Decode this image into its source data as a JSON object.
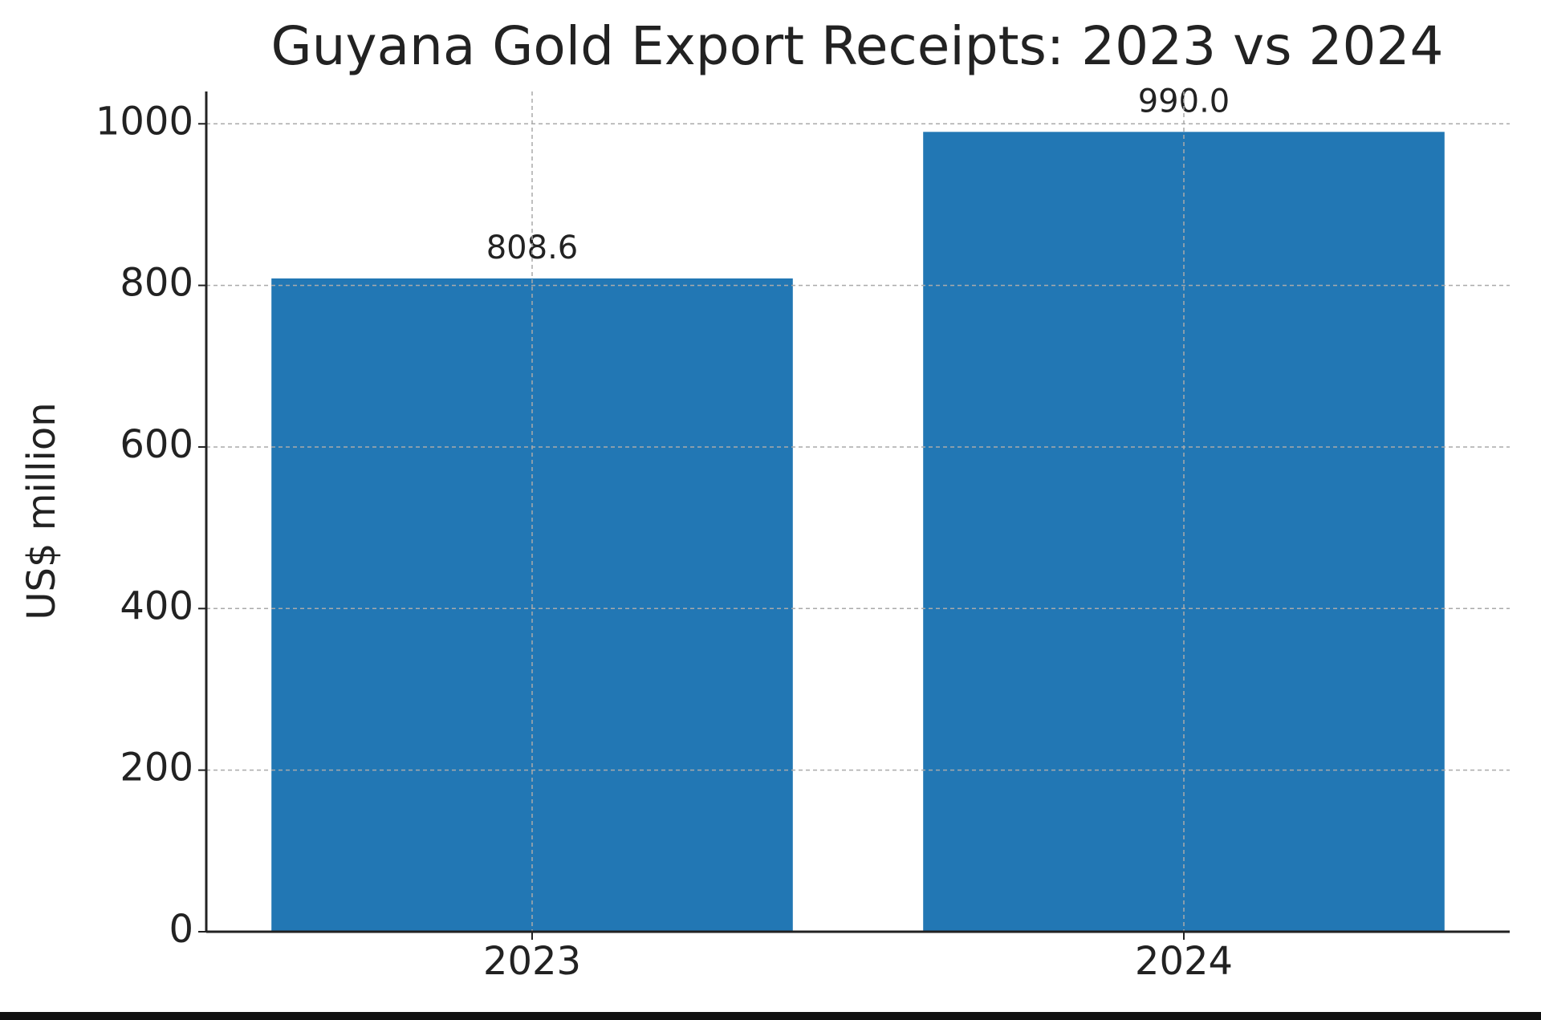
{
  "chart_data": {
    "type": "bar",
    "title": "Guyana Gold Export Receipts: 2023 vs 2024",
    "y_label": "US$ million",
    "categories": [
      "2023",
      "2024"
    ],
    "values": [
      808.6,
      990.0
    ],
    "value_labels": [
      "808.6",
      "990.0"
    ],
    "color": "#2277b4",
    "ylim": [
      0,
      1040
    ],
    "yticks": [
      0,
      200,
      400,
      600,
      800,
      1000
    ],
    "grid": true
  }
}
